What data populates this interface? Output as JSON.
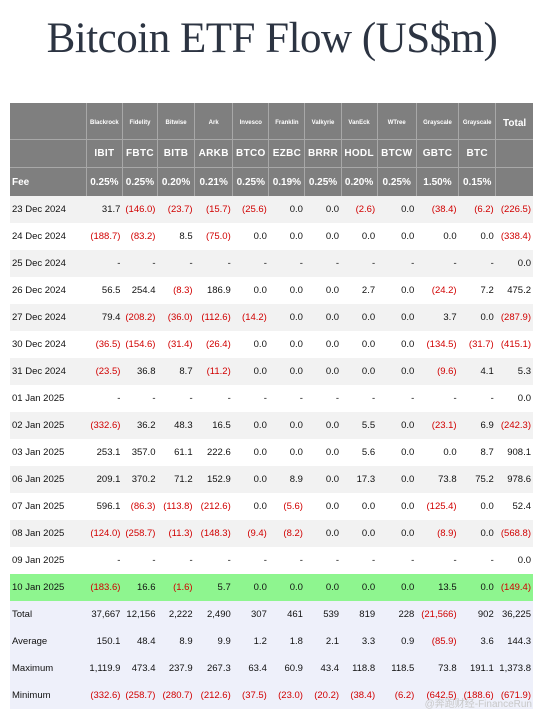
{
  "title": "Bitcoin ETF Flow (US$m)",
  "header": {
    "sponsors": [
      "Blackrock",
      "Fidelity",
      "Bitwise",
      "Ark",
      "Invesco",
      "Franklin",
      "Valkyrie",
      "VanEck",
      "WTree",
      "Grayscale",
      "Grayscale"
    ],
    "total_label": "Total",
    "tickers": [
      "IBIT",
      "FBTC",
      "BITB",
      "ARKB",
      "BTCO",
      "EZBC",
      "BRRR",
      "HODL",
      "BTCW",
      "GBTC",
      "BTC"
    ],
    "fee_label": "Fee",
    "fees": [
      "0.25%",
      "0.25%",
      "0.20%",
      "0.21%",
      "0.25%",
      "0.19%",
      "0.25%",
      "0.20%",
      "0.25%",
      "1.50%",
      "0.15%"
    ]
  },
  "rows": [
    {
      "date": "23 Dec 2024",
      "values": [
        "31.7",
        "(146.0)",
        "(23.7)",
        "(15.7)",
        "(25.6)",
        "0.0",
        "0.0",
        "(2.6)",
        "0.0",
        "(38.4)",
        "(6.2)",
        "(226.5)"
      ]
    },
    {
      "date": "24 Dec 2024",
      "values": [
        "(188.7)",
        "(83.2)",
        "8.5",
        "(75.0)",
        "0.0",
        "0.0",
        "0.0",
        "0.0",
        "0.0",
        "0.0",
        "0.0",
        "(338.4)"
      ]
    },
    {
      "date": "25 Dec 2024",
      "values": [
        "-",
        "-",
        "-",
        "-",
        "-",
        "-",
        "-",
        "-",
        "-",
        "-",
        "-",
        "0.0"
      ]
    },
    {
      "date": "26 Dec 2024",
      "values": [
        "56.5",
        "254.4",
        "(8.3)",
        "186.9",
        "0.0",
        "0.0",
        "0.0",
        "2.7",
        "0.0",
        "(24.2)",
        "7.2",
        "475.2"
      ]
    },
    {
      "date": "27 Dec 2024",
      "values": [
        "79.4",
        "(208.2)",
        "(36.0)",
        "(112.6)",
        "(14.2)",
        "0.0",
        "0.0",
        "0.0",
        "0.0",
        "3.7",
        "0.0",
        "(287.9)"
      ]
    },
    {
      "date": "30 Dec 2024",
      "values": [
        "(36.5)",
        "(154.6)",
        "(31.4)",
        "(26.4)",
        "0.0",
        "0.0",
        "0.0",
        "0.0",
        "0.0",
        "(134.5)",
        "(31.7)",
        "(415.1)"
      ]
    },
    {
      "date": "31 Dec 2024",
      "values": [
        "(23.5)",
        "36.8",
        "8.7",
        "(11.2)",
        "0.0",
        "0.0",
        "0.0",
        "0.0",
        "0.0",
        "(9.6)",
        "4.1",
        "5.3"
      ]
    },
    {
      "date": "01 Jan 2025",
      "values": [
        "-",
        "-",
        "-",
        "-",
        "-",
        "-",
        "-",
        "-",
        "-",
        "-",
        "-",
        "0.0"
      ]
    },
    {
      "date": "02 Jan 2025",
      "values": [
        "(332.6)",
        "36.2",
        "48.3",
        "16.5",
        "0.0",
        "0.0",
        "0.0",
        "5.5",
        "0.0",
        "(23.1)",
        "6.9",
        "(242.3)"
      ]
    },
    {
      "date": "03 Jan 2025",
      "values": [
        "253.1",
        "357.0",
        "61.1",
        "222.6",
        "0.0",
        "0.0",
        "0.0",
        "5.6",
        "0.0",
        "0.0",
        "8.7",
        "908.1"
      ]
    },
    {
      "date": "06 Jan 2025",
      "values": [
        "209.1",
        "370.2",
        "71.2",
        "152.9",
        "0.0",
        "8.9",
        "0.0",
        "17.3",
        "0.0",
        "73.8",
        "75.2",
        "978.6"
      ]
    },
    {
      "date": "07 Jan 2025",
      "values": [
        "596.1",
        "(86.3)",
        "(113.8)",
        "(212.6)",
        "0.0",
        "(5.6)",
        "0.0",
        "0.0",
        "0.0",
        "(125.4)",
        "0.0",
        "52.4"
      ]
    },
    {
      "date": "08 Jan 2025",
      "values": [
        "(124.0)",
        "(258.7)",
        "(11.3)",
        "(148.3)",
        "(9.4)",
        "(8.2)",
        "0.0",
        "0.0",
        "0.0",
        "(8.9)",
        "0.0",
        "(568.8)"
      ]
    },
    {
      "date": "09 Jan 2025",
      "values": [
        "-",
        "-",
        "-",
        "-",
        "-",
        "-",
        "-",
        "-",
        "-",
        "-",
        "-",
        "0.0"
      ]
    },
    {
      "date": "10 Jan 2025",
      "values": [
        "(183.6)",
        "16.6",
        "(1.6)",
        "5.7",
        "0.0",
        "0.0",
        "0.0",
        "0.0",
        "0.0",
        "13.5",
        "0.0",
        "(149.4)"
      ]
    }
  ],
  "stats": [
    {
      "label": "Total",
      "values": [
        "37,667",
        "12,156",
        "2,222",
        "2,490",
        "307",
        "461",
        "539",
        "819",
        "228",
        "(21,566)",
        "902",
        "36,225"
      ]
    },
    {
      "label": "Average",
      "values": [
        "150.1",
        "48.4",
        "8.9",
        "9.9",
        "1.2",
        "1.8",
        "2.1",
        "3.3",
        "0.9",
        "(85.9)",
        "3.6",
        "144.3"
      ]
    },
    {
      "label": "Maximum",
      "values": [
        "1,119.9",
        "473.4",
        "237.9",
        "267.3",
        "63.4",
        "60.9",
        "43.4",
        "118.8",
        "118.5",
        "73.8",
        "191.1",
        "1,373.8"
      ]
    },
    {
      "label": "Minimum",
      "values": [
        "(332.6)",
        "(258.7)",
        "(280.7)",
        "(212.6)",
        "(37.5)",
        "(23.0)",
        "(20.2)",
        "(38.4)",
        "(6.2)",
        "(642.5)",
        "(188.6)",
        "(671.9)"
      ]
    }
  ],
  "watermark": "@奔跑财经-FinanceRun",
  "colors": {
    "header_bg": "#7f7f7f",
    "negative": "#d10000",
    "highlight_row": "#8ef58f",
    "stats_bg": "#eef0fa",
    "alt_row": "#f2f2f2"
  }
}
